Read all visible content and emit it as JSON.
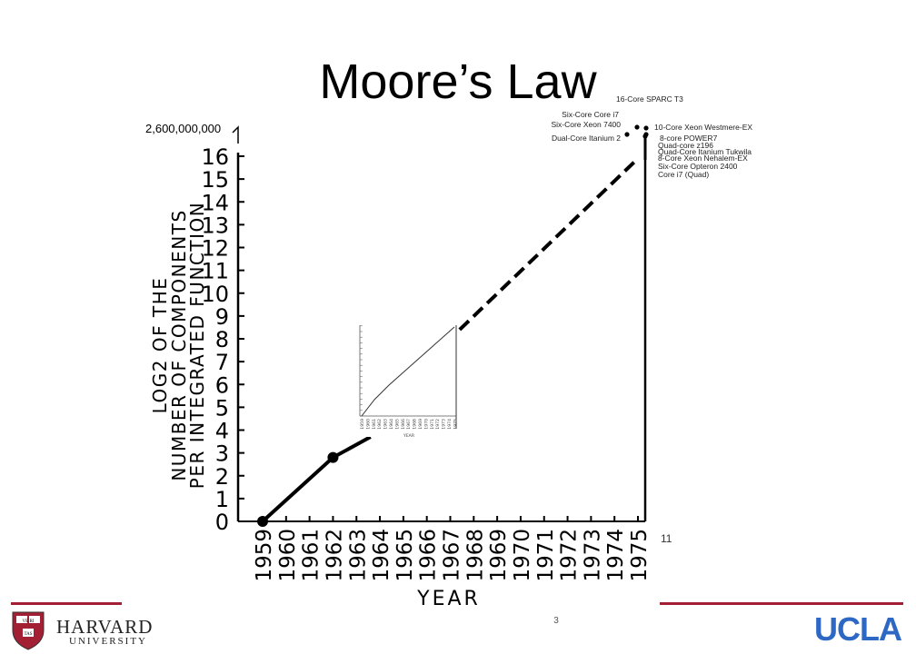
{
  "slide": {
    "title": "Moore’s Law",
    "page_number": "3",
    "index_label": "11"
  },
  "logos": {
    "harvard_name": "HARVARD",
    "harvard_sub": "UNIVERSITY",
    "harvard_shield_text": [
      "VE RI",
      "TAS"
    ],
    "ucla": "UCLA"
  },
  "colors": {
    "accent_line": "#a31f34",
    "ucla_blue": "#2d68c4"
  },
  "chart_data": {
    "type": "line",
    "xlabel": "YEAR",
    "ylabel_lines": [
      "LOG2 OF THE",
      "NUMBER OF COMPONENTS",
      "PER INTEGRATED FUNCTION"
    ],
    "top_label": "2,600,000,000",
    "x_categories": [
      "1959",
      "1960",
      "1961",
      "1962",
      "1963",
      "1964",
      "1965",
      "1966",
      "1967",
      "1968",
      "1969",
      "1970",
      "1971",
      "1972",
      "1973",
      "1974",
      "1975"
    ],
    "y_ticks": [
      "0",
      "1",
      "2",
      "3",
      "4",
      "5",
      "6",
      "7",
      "8",
      "9",
      "10",
      "11",
      "12",
      "13",
      "14",
      "15",
      "16"
    ],
    "xlim": [
      1959,
      1975
    ],
    "ylim": [
      0,
      16
    ],
    "series": [
      {
        "style": "solid",
        "x": [
          1959,
          1962,
          1963.6
        ],
        "y": [
          0,
          2.8,
          3.7
        ]
      },
      {
        "style": "dashed",
        "x": [
          1967.4,
          1975
        ],
        "y": [
          8.4,
          15.9
        ]
      }
    ],
    "markers": [
      {
        "x": 1959,
        "y": 0
      },
      {
        "x": 1962,
        "y": 2.8
      }
    ],
    "processor_labels": [
      "16-Core SPARC T3",
      "Six-Core Core i7",
      "Six-Core Xeon 7400",
      "10-Core Xeon Westmere-EX",
      "Dual-Core Itanium 2",
      "8-core POWER7",
      "Quad-core z196",
      "Quad-Core Itanium Tukwila",
      "8-Core Xeon Nehalem-EX",
      "Six-Core Opteron 2400",
      "Core i7 (Quad)"
    ],
    "inset": {
      "x_categories": [
        "1959",
        "1960",
        "1961",
        "1962",
        "1963",
        "1964",
        "1965",
        "1966",
        "1967",
        "1968",
        "1969",
        "1970",
        "1971",
        "1972",
        "1973",
        "1974",
        "1975"
      ],
      "xlabel": "YEAR"
    }
  }
}
